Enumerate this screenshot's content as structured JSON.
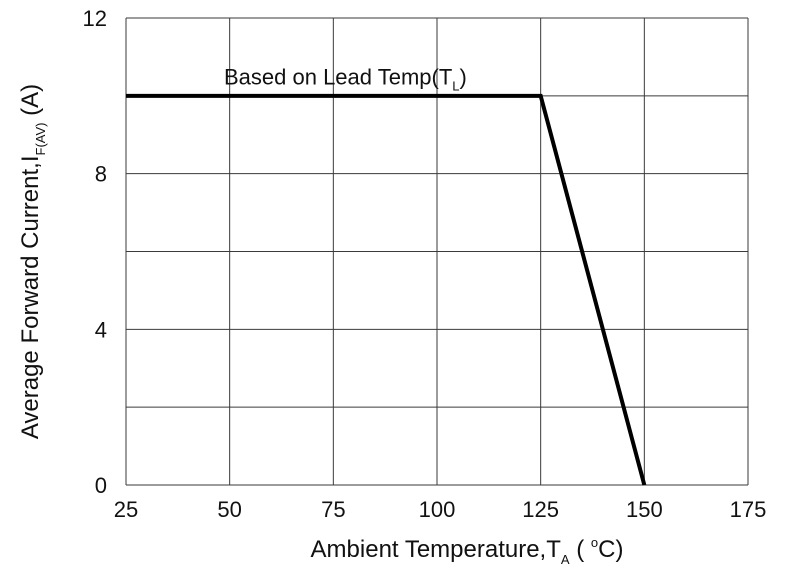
{
  "chart_data": {
    "type": "line",
    "title": "",
    "xlabel": {
      "main": "Ambient Temperature,T",
      "subscript": "A",
      "unit_open": " ( ",
      "degree": "o",
      "unit_close": "C)"
    },
    "ylabel": {
      "main": "Average Forward Current,I",
      "subscript": "F(AV)",
      "unit": " (A)"
    },
    "xlim": [
      25,
      175
    ],
    "ylim": [
      0,
      12
    ],
    "x_ticks": [
      25,
      50,
      75,
      100,
      125,
      150,
      175
    ],
    "x_tick_labels": [
      "25",
      "50",
      "75",
      "100",
      "125",
      "150",
      "175"
    ],
    "y_ticks": [
      0,
      4,
      8,
      12
    ],
    "y_tick_labels": [
      "0",
      "4",
      "8",
      "12"
    ],
    "x_grid": [
      25,
      50,
      75,
      100,
      125,
      150,
      175
    ],
    "y_grid": [
      0,
      2,
      4,
      6,
      8,
      10,
      12
    ],
    "grid": true,
    "series": [
      {
        "x": [
          25,
          125,
          150
        ],
        "y": [
          10,
          10,
          0
        ],
        "color": "#000000"
      }
    ],
    "annotations": [
      {
        "text": "Based on Lead Temp(T",
        "subscript": "L",
        "suffix": ")",
        "x": 75,
        "y": 10.5
      }
    ],
    "colors": {
      "grid": "#3a3a3a",
      "line": "#000000",
      "text": "#111111"
    }
  }
}
